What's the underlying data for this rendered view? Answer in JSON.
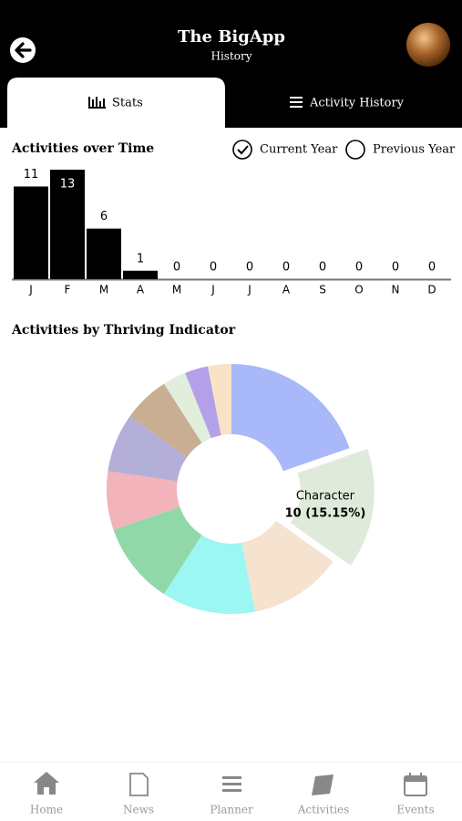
{
  "header": {
    "title": "The BigApp",
    "subtitle": "History"
  },
  "tabs": [
    "Stats",
    "Activity History"
  ],
  "bar_section": {
    "title": "Activities over Time",
    "options": [
      "Current Year",
      "Previous Year"
    ],
    "chart_data": {
      "type": "bar",
      "categories": [
        "J",
        "F",
        "M",
        "A",
        "M",
        "J",
        "J",
        "A",
        "S",
        "O",
        "N",
        "D"
      ],
      "values": [
        11,
        13,
        6,
        1,
        0,
        0,
        0,
        0,
        0,
        0,
        0,
        0
      ],
      "color": "#000000"
    }
  },
  "donut_section": {
    "title": "Activities by Thriving Indicator",
    "chart_data": {
      "type": "donut",
      "categories": [
        null,
        "Character",
        null,
        null,
        null,
        null,
        null,
        null,
        null,
        null,
        null
      ],
      "values": [
        13,
        10,
        8,
        8,
        7,
        5,
        5,
        4,
        2,
        2,
        2
      ],
      "value_labels": [
        null,
        "10 (15.15%)",
        null,
        null,
        null,
        null,
        null,
        null,
        null,
        null,
        null
      ],
      "colors": [
        "#a8b8f8",
        "#dfeadb",
        "#f5e3d0",
        "#9cf7f2",
        "#91d8a8",
        "#f2b3ba",
        "#b3afd8",
        "#c9ae93",
        "#e0eedb",
        "#b3a0e8",
        "#fae2c6"
      ]
    }
  },
  "nav": [
    "Home",
    "News",
    "Planner",
    "Activities",
    "Events"
  ]
}
